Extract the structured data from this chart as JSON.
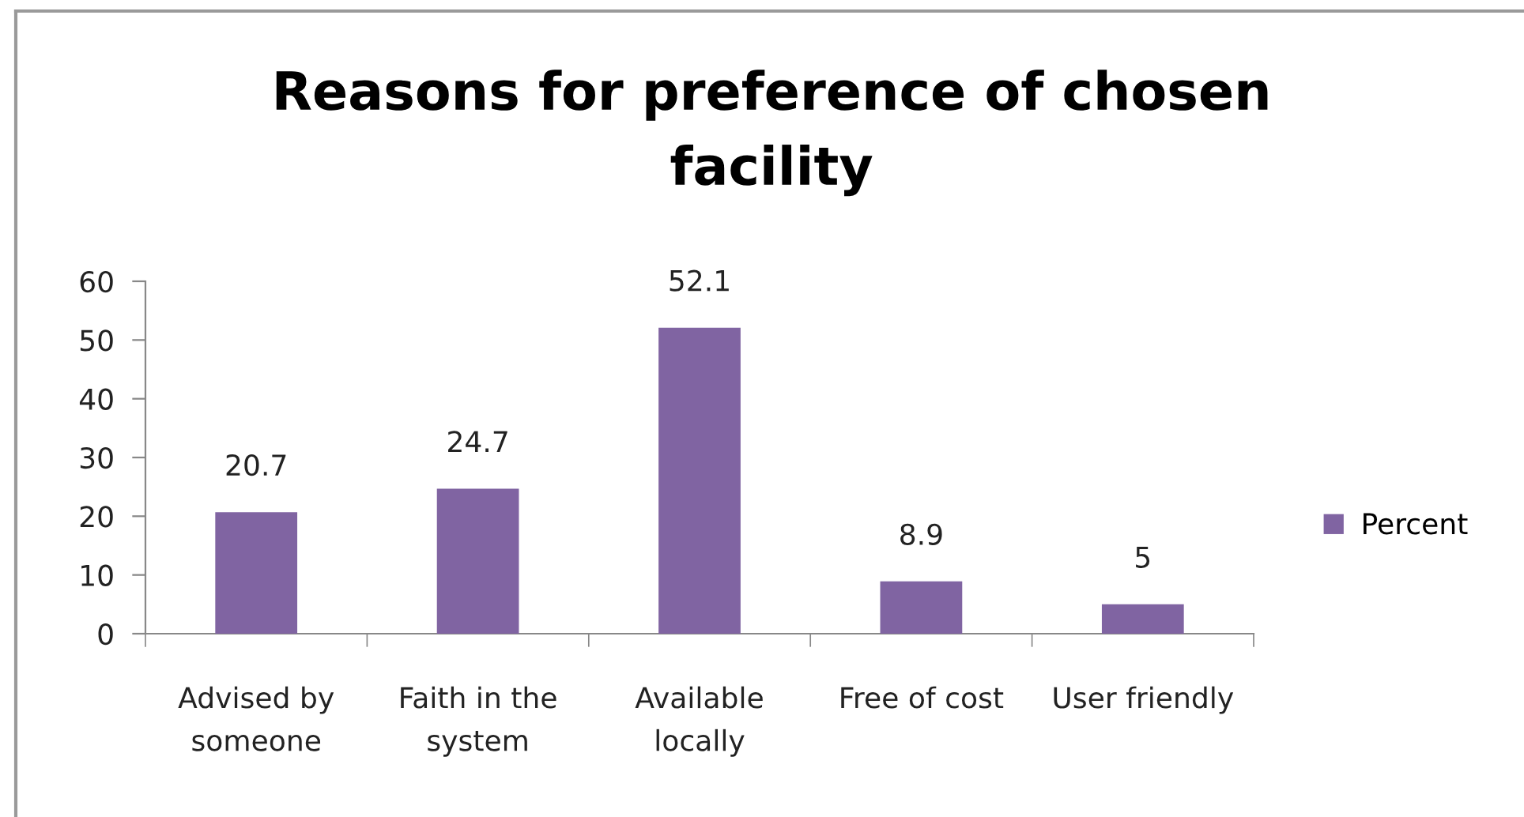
{
  "chart_data": {
    "type": "bar",
    "title": "Reasons for preference of chosen\nfacility",
    "categories": [
      "Advised by\nsomeone",
      "Faith in the\nsystem",
      "Available\nlocally",
      "Free of cost",
      "User friendly"
    ],
    "series": [
      {
        "name": "Percent",
        "color": "#8064a2",
        "values": [
          20.7,
          24.7,
          52.1,
          8.9,
          5
        ]
      }
    ],
    "ylim": [
      0,
      60
    ],
    "yticks": [
      0,
      10,
      20,
      30,
      40,
      50,
      60
    ],
    "data_labels": true,
    "legend": "right",
    "grid": false
  }
}
